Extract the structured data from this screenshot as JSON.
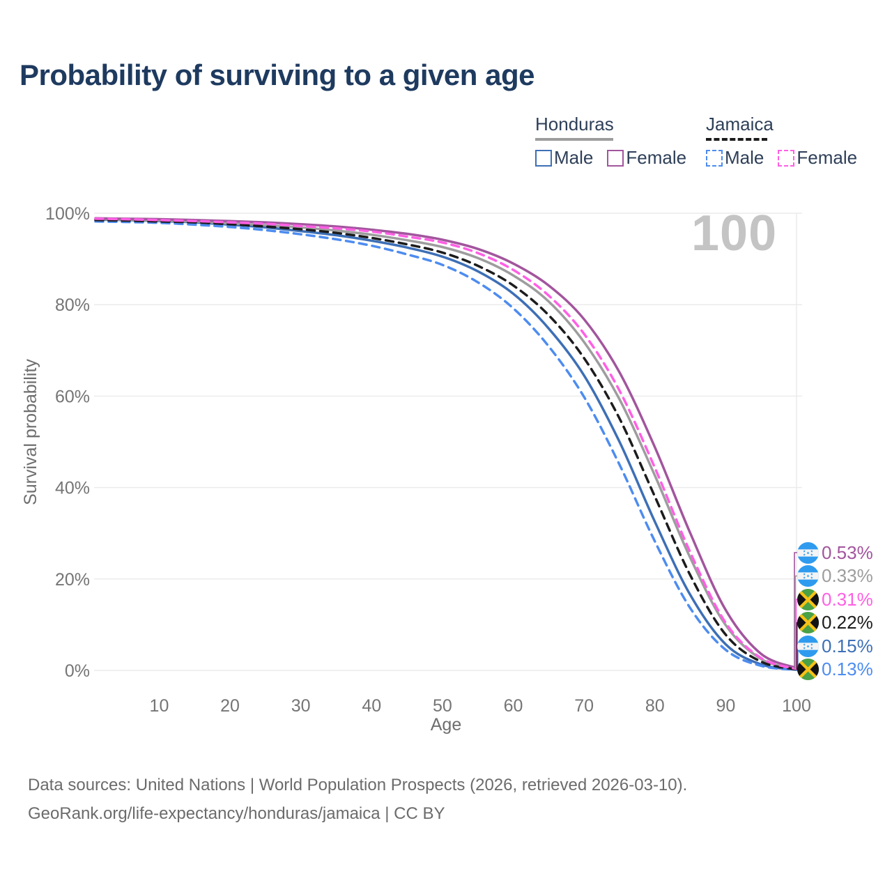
{
  "title": "Probability of surviving to a given age",
  "watermark": "100",
  "legend": {
    "honduras": {
      "label": "Honduras",
      "male": "Male",
      "female": "Female"
    },
    "jamaica": {
      "label": "Jamaica",
      "male": "Male",
      "female": "Female"
    }
  },
  "axis": {
    "x_label": "Age",
    "y_label": "Survival probability"
  },
  "footer": {
    "line1": "Data sources: United Nations | World Population Prospects (2026, retrieved 2026-03-10).",
    "line2": "GeoRank.org/life-expectancy/honduras/jamaica | CC BY"
  },
  "colors": {
    "honduras_male": "#3d6fb6",
    "honduras_female": "#a2559d",
    "honduras_total": "#9d9d9d",
    "jamaica_male": "#4d8cf0",
    "jamaica_female": "#ff5fe4",
    "jamaica_total": "#1c1c1c",
    "title_text": "#1e3a5f",
    "axis_text": "#757575",
    "muted_text": "#6b6b6b",
    "grid": "#ebebeb",
    "watermark": "#c4c4c4",
    "background": "#ffffff",
    "flag_honduras_blue": "#2f9bef",
    "flag_jamaica_green": "#4aa147",
    "flag_jamaica_gold": "#f6c215",
    "flag_jamaica_black": "#131313"
  },
  "chart_data": {
    "type": "line",
    "title": "Probability of surviving to a given age",
    "xlabel": "Age",
    "ylabel": "Survival probability",
    "xlim": [
      1,
      100
    ],
    "ylim": [
      0,
      100
    ],
    "grid": "horizontal",
    "legend_position": "top-right",
    "x_ticks": [
      10,
      20,
      30,
      40,
      50,
      60,
      70,
      80,
      90,
      100
    ],
    "y_tick_values": [
      0,
      20,
      40,
      60,
      80,
      100
    ],
    "y_tick_labels": [
      "0%",
      "20%",
      "40%",
      "60%",
      "80%",
      "100%"
    ],
    "ages": [
      1,
      5,
      10,
      15,
      20,
      25,
      30,
      35,
      40,
      45,
      50,
      55,
      60,
      65,
      70,
      75,
      80,
      85,
      90,
      95,
      100
    ],
    "series": [
      {
        "name": "Honduras Female",
        "country": "Honduras",
        "sex": "female",
        "line_style": "solid",
        "color": "#a2559d",
        "flag": "honduras",
        "end_label": "0.53%",
        "end_value": 0.53,
        "values": [
          98.9,
          98.8,
          98.7,
          98.5,
          98.3,
          98.0,
          97.6,
          97.1,
          96.4,
          95.5,
          94.2,
          92.2,
          89.0,
          84.2,
          76.8,
          65.2,
          48.8,
          30.0,
          13.2,
          3.6,
          0.53
        ]
      },
      {
        "name": "Honduras",
        "country": "Honduras",
        "sex": "total",
        "line_style": "solid",
        "color": "#9d9d9d",
        "flag": "honduras",
        "end_label": "0.33%",
        "end_value": 0.33,
        "values": [
          98.7,
          98.6,
          98.4,
          98.2,
          97.8,
          97.4,
          96.9,
          96.2,
          95.3,
          94.1,
          92.6,
          90.2,
          86.4,
          80.7,
          71.8,
          59.3,
          42.6,
          24.6,
          9.9,
          2.5,
          0.33
        ]
      },
      {
        "name": "Jamaica Female",
        "country": "Jamaica",
        "sex": "female",
        "line_style": "dashed",
        "color": "#ff5fe4",
        "flag": "jamaica",
        "end_label": "0.31%",
        "end_value": 0.31,
        "values": [
          98.8,
          98.7,
          98.5,
          98.3,
          98.0,
          97.7,
          97.2,
          96.7,
          96.0,
          94.9,
          93.6,
          91.3,
          87.6,
          82.0,
          73.6,
          61.2,
          44.3,
          25.8,
          10.4,
          2.7,
          0.31
        ]
      },
      {
        "name": "Jamaica",
        "country": "Jamaica",
        "sex": "total",
        "line_style": "dashed",
        "color": "#1c1c1c",
        "flag": "jamaica",
        "end_label": "0.22%",
        "end_value": 0.22,
        "values": [
          98.5,
          98.4,
          98.2,
          98.0,
          97.6,
          97.1,
          96.5,
          95.7,
          94.6,
          93.2,
          91.4,
          88.5,
          84.2,
          77.7,
          68.3,
          55.1,
          38.0,
          20.8,
          7.8,
          1.9,
          0.22
        ]
      },
      {
        "name": "Honduras Male",
        "country": "Honduras",
        "sex": "male",
        "line_style": "solid",
        "color": "#3d6fb6",
        "flag": "honduras",
        "end_label": "0.15%",
        "end_value": 0.15,
        "values": [
          98.6,
          98.5,
          98.3,
          98.0,
          97.5,
          96.9,
          96.1,
          95.2,
          94.0,
          92.5,
          90.5,
          87.3,
          82.4,
          74.8,
          64.5,
          50.0,
          32.5,
          16.5,
          5.7,
          1.3,
          0.15
        ]
      },
      {
        "name": "Jamaica Male",
        "country": "Jamaica",
        "sex": "male",
        "line_style": "dashed",
        "color": "#4d8cf0",
        "flag": "jamaica",
        "end_label": "0.13%",
        "end_value": 0.13,
        "values": [
          98.2,
          98.1,
          97.9,
          97.5,
          97.0,
          96.3,
          95.4,
          94.3,
          92.9,
          91.0,
          88.7,
          84.9,
          79.2,
          70.9,
          59.8,
          45.0,
          28.2,
          13.6,
          4.5,
          1.0,
          0.13
        ]
      }
    ]
  }
}
